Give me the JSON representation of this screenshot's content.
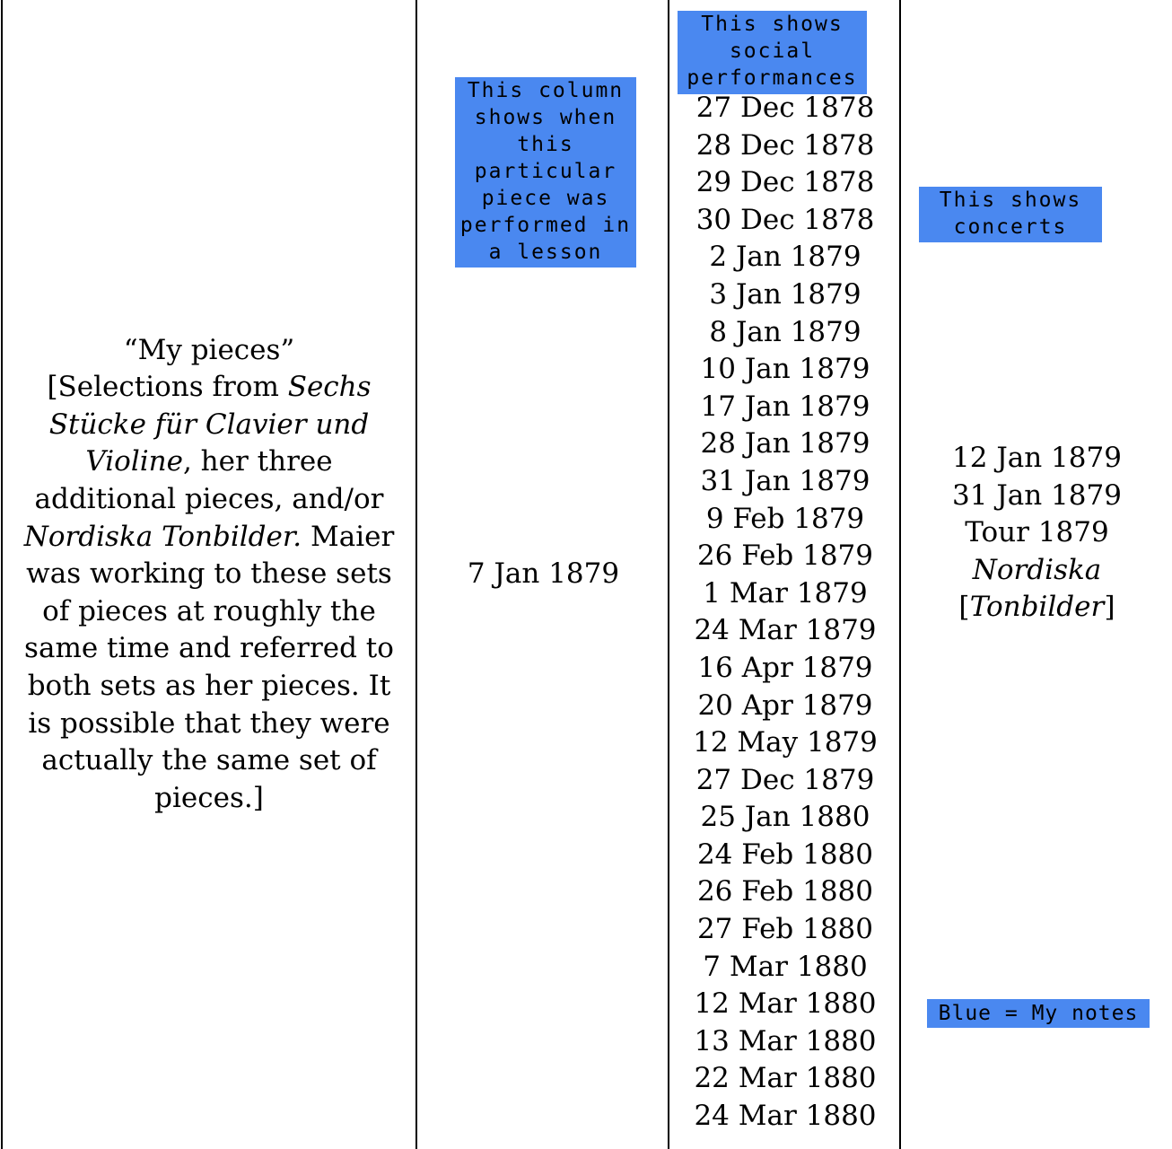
{
  "column1": {
    "segments": [
      {
        "text": "“My pieces”",
        "italic": false,
        "br": true
      },
      {
        "text": "[Selections from ",
        "italic": false
      },
      {
        "text": "Sechs Stücke für Clavier und Violine",
        "italic": true
      },
      {
        "text": ", her three additional pieces, and/or ",
        "italic": false
      },
      {
        "text": "Nordiska Tonbilder.",
        "italic": true
      },
      {
        "text": " Maier was working to these sets of pieces at roughly the same time and referred to both sets as her pieces. It is possible that they were actually the same set of pieces.]",
        "italic": false
      }
    ]
  },
  "column2": {
    "date": "7 Jan 1879"
  },
  "column3": {
    "dates": [
      "27 Dec 1878",
      "28 Dec 1878",
      "29 Dec 1878",
      "30 Dec 1878",
      "2 Jan 1879",
      "3 Jan 1879",
      "8 Jan 1879",
      "10 Jan 1879",
      "17 Jan 1879",
      "28 Jan 1879",
      "31 Jan 1879",
      "9 Feb 1879",
      "26 Feb 1879",
      "1 Mar 1879",
      "24 Mar 1879",
      "16 Apr 1879",
      "20 Apr 1879",
      "12 May 1879",
      "27 Dec 1879",
      "25 Jan 1880",
      "24 Feb 1880",
      "26 Feb 1880",
      "27 Feb 1880",
      "7 Mar 1880",
      "12 Mar 1880",
      "13 Mar 1880",
      "22 Mar 1880",
      "24 Mar 1880"
    ]
  },
  "column4": {
    "line1": "12 Jan 1879",
    "line2": "31 Jan 1879",
    "line3": "Tour 1879",
    "bracket_open": "[",
    "italic": "Nordiska Tonbilder",
    "bracket_close": "]"
  },
  "notes": {
    "lesson": "This column shows when this particular piece was performed in a lesson",
    "social": "This shows social performances",
    "concerts": "This shows concerts",
    "legend": "Blue = My notes"
  },
  "colors": {
    "note_highlight": "#4a88f0"
  }
}
